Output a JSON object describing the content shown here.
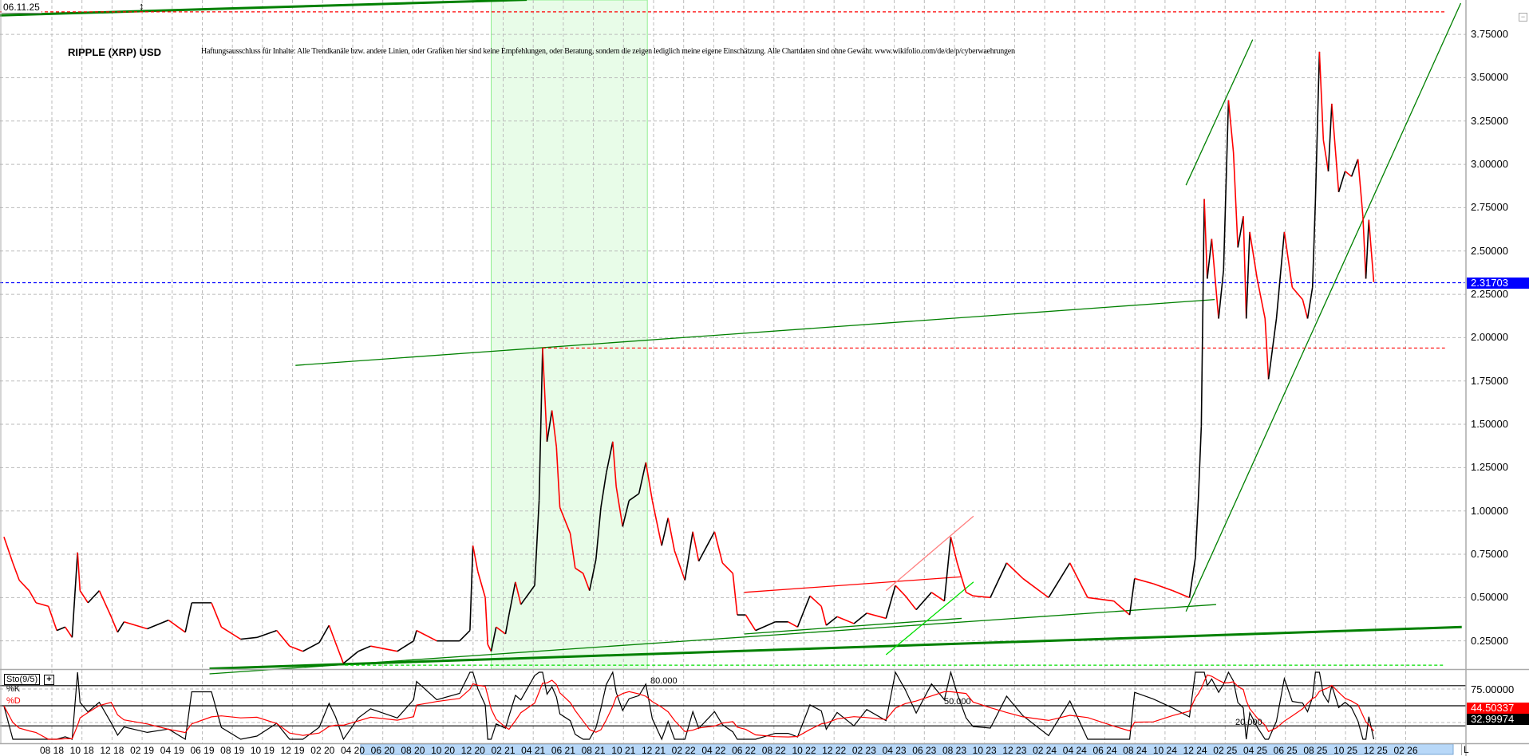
{
  "header": {
    "date": "06.11.25",
    "title": "RIPPLE (XRP) USD",
    "disclaimer": "Haftungsausschluss für Inhalte: Alle Trendkanäle bzw. andere Linien, oder Grafiken hier sind keine Empfehlungen, oder Beratung, sondern die zeigen lediglich meine eigene Einschätzung. Alle Chartdaten sind ohne Gewähr. www.wikifolio.com/de/de/p/cyberwaehrungen",
    "icons": {
      "drag": "up-down-arrow-icon",
      "collapse": "collapse-box-icon"
    }
  },
  "chart_data": {
    "type": "line",
    "style": "candlestick-like, up black / down red",
    "ylim": [
      0,
      3.95
    ],
    "y_ticks": [
      "0.25000",
      "0.50000",
      "0.75000",
      "1.00000",
      "1.25000",
      "1.50000",
      "1.75000",
      "2.00000",
      "2.25000",
      "2.50000",
      "2.75000",
      "3.00000",
      "3.25000",
      "3.50000",
      "3.75000"
    ],
    "x_ticks": [
      "08 18",
      "10 18",
      "12 18",
      "02 19",
      "04 19",
      "06 19",
      "08 19",
      "10 19",
      "12 19",
      "02 20",
      "04 20",
      "06 20",
      "08 20",
      "10 20",
      "12 20",
      "02 21",
      "04 21",
      "06 21",
      "08 21",
      "10 21",
      "12 21",
      "02 22",
      "04 22",
      "06 22",
      "08 22",
      "10 22",
      "12 22",
      "02 23",
      "04 23",
      "06 23",
      "08 23",
      "10 23",
      "12 23",
      "02 24",
      "04 24",
      "06 24",
      "08 24",
      "10 24",
      "12 24",
      "02 25",
      "04 25",
      "06 25",
      "08 25",
      "10 25",
      "12 25",
      "02 26"
    ],
    "grid": true,
    "current_price": "2.31703",
    "colors": {
      "up": "#000000",
      "down": "#ff0000",
      "current": "#0000ff",
      "trend": "#008000",
      "shade": "#e8fce8"
    },
    "points": [
      [
        "2018-04-26",
        0.85
      ],
      [
        "2018-05-14",
        0.7
      ],
      [
        "2018-05-27",
        0.6
      ],
      [
        "2018-06-16",
        0.54
      ],
      [
        "2018-06-30",
        0.47
      ],
      [
        "2018-07-25",
        0.45
      ],
      [
        "2018-08-11",
        0.31
      ],
      [
        "2018-08-28",
        0.33
      ],
      [
        "2018-09-11",
        0.27
      ],
      [
        "2018-09-22",
        0.76
      ],
      [
        "2018-09-27",
        0.54
      ],
      [
        "2018-10-13",
        0.47
      ],
      [
        "2018-11-05",
        0.54
      ],
      [
        "2018-11-29",
        0.39
      ],
      [
        "2018-12-12",
        0.3
      ],
      [
        "2018-12-25",
        0.36
      ],
      [
        "2019-02-10",
        0.32
      ],
      [
        "2019-03-25",
        0.37
      ],
      [
        "2019-04-28",
        0.3
      ],
      [
        "2019-05-11",
        0.47
      ],
      [
        "2019-06-20",
        0.47
      ],
      [
        "2019-07-10",
        0.33
      ],
      [
        "2019-08-18",
        0.26
      ],
      [
        "2019-09-20",
        0.27
      ],
      [
        "2019-10-30",
        0.31
      ],
      [
        "2019-11-25",
        0.22
      ],
      [
        "2019-12-22",
        0.19
      ],
      [
        "2020-01-24",
        0.24
      ],
      [
        "2020-02-13",
        0.34
      ],
      [
        "2020-02-26",
        0.24
      ],
      [
        "2020-03-13",
        0.12
      ],
      [
        "2020-04-12",
        0.19
      ],
      [
        "2020-05-07",
        0.22
      ],
      [
        "2020-06-30",
        0.19
      ],
      [
        "2020-08-02",
        0.25
      ],
      [
        "2020-08-08",
        0.31
      ],
      [
        "2020-09-18",
        0.25
      ],
      [
        "2020-11-03",
        0.25
      ],
      [
        "2020-11-24",
        0.31
      ],
      [
        "2020-11-30",
        0.8
      ],
      [
        "2020-12-10",
        0.65
      ],
      [
        "2020-12-25",
        0.5
      ],
      [
        "2020-12-30",
        0.23
      ],
      [
        "2021-01-06",
        0.19
      ],
      [
        "2021-01-16",
        0.33
      ],
      [
        "2021-02-04",
        0.29
      ],
      [
        "2021-02-11",
        0.4
      ],
      [
        "2021-02-24",
        0.59
      ],
      [
        "2021-03-07",
        0.46
      ],
      [
        "2021-04-04",
        0.57
      ],
      [
        "2021-04-13",
        1.06
      ],
      [
        "2021-04-20",
        1.94
      ],
      [
        "2021-04-29",
        1.4
      ],
      [
        "2021-05-09",
        1.58
      ],
      [
        "2021-05-18",
        1.37
      ],
      [
        "2021-05-25",
        1.02
      ],
      [
        "2021-06-15",
        0.87
      ],
      [
        "2021-06-25",
        0.67
      ],
      [
        "2021-07-11",
        0.64
      ],
      [
        "2021-07-24",
        0.54
      ],
      [
        "2021-08-06",
        0.72
      ],
      [
        "2021-08-16",
        1.02
      ],
      [
        "2021-08-27",
        1.22
      ],
      [
        "2021-09-09",
        1.4
      ],
      [
        "2021-09-16",
        1.14
      ],
      [
        "2021-09-29",
        0.91
      ],
      [
        "2021-10-12",
        1.06
      ],
      [
        "2021-11-01",
        1.1
      ],
      [
        "2021-11-15",
        1.28
      ],
      [
        "2021-11-28",
        1.06
      ],
      [
        "2021-12-17",
        0.8
      ],
      [
        "2021-12-30",
        0.96
      ],
      [
        "2022-01-12",
        0.77
      ],
      [
        "2022-02-02",
        0.6
      ],
      [
        "2022-02-18",
        0.88
      ],
      [
        "2022-03-02",
        0.71
      ],
      [
        "2022-04-03",
        0.88
      ],
      [
        "2022-04-19",
        0.7
      ],
      [
        "2022-05-10",
        0.64
      ],
      [
        "2022-05-19",
        0.4
      ],
      [
        "2022-06-05",
        0.4
      ],
      [
        "2022-06-25",
        0.31
      ],
      [
        "2022-08-04",
        0.36
      ],
      [
        "2022-08-30",
        0.36
      ],
      [
        "2022-09-18",
        0.33
      ],
      [
        "2022-10-13",
        0.51
      ],
      [
        "2022-11-05",
        0.45
      ],
      [
        "2022-11-15",
        0.34
      ],
      [
        "2022-12-07",
        0.39
      ],
      [
        "2023-01-10",
        0.35
      ],
      [
        "2023-02-05",
        0.41
      ],
      [
        "2023-03-16",
        0.38
      ],
      [
        "2023-04-04",
        0.57
      ],
      [
        "2023-04-24",
        0.51
      ],
      [
        "2023-05-16",
        0.43
      ],
      [
        "2023-06-16",
        0.53
      ],
      [
        "2023-07-12",
        0.48
      ],
      [
        "2023-07-25",
        0.85
      ],
      [
        "2023-08-07",
        0.7
      ],
      [
        "2023-08-25",
        0.53
      ],
      [
        "2023-09-08",
        0.51
      ],
      [
        "2023-10-13",
        0.5
      ],
      [
        "2023-11-15",
        0.7
      ],
      [
        "2023-12-18",
        0.61
      ],
      [
        "2024-02-08",
        0.5
      ],
      [
        "2024-03-22",
        0.7
      ],
      [
        "2024-04-27",
        0.5
      ],
      [
        "2024-06-19",
        0.48
      ],
      [
        "2024-07-21",
        0.4
      ],
      [
        "2024-07-31",
        0.61
      ],
      [
        "2024-09-07",
        0.58
      ],
      [
        "2024-10-16",
        0.54
      ],
      [
        "2024-11-19",
        0.5
      ],
      [
        "2024-12-01",
        0.73
      ],
      [
        "2024-12-07",
        1.07
      ],
      [
        "2024-12-13",
        1.49
      ],
      [
        "2024-12-19",
        2.8
      ],
      [
        "2024-12-25",
        2.34
      ],
      [
        "2025-01-03",
        2.57
      ],
      [
        "2025-01-17",
        2.11
      ],
      [
        "2025-01-27",
        2.39
      ],
      [
        "2025-02-06",
        3.37
      ],
      [
        "2025-02-16",
        3.07
      ],
      [
        "2025-02-25",
        2.52
      ],
      [
        "2025-03-08",
        2.7
      ],
      [
        "2025-03-14",
        2.11
      ],
      [
        "2025-03-21",
        2.61
      ],
      [
        "2025-04-05",
        2.34
      ],
      [
        "2025-04-21",
        2.11
      ],
      [
        "2025-04-28",
        1.76
      ],
      [
        "2025-05-14",
        2.11
      ],
      [
        "2025-05-30",
        2.61
      ],
      [
        "2025-06-15",
        2.29
      ],
      [
        "2025-07-06",
        2.22
      ],
      [
        "2025-07-16",
        2.11
      ],
      [
        "2025-07-26",
        2.29
      ],
      [
        "2025-08-01",
        2.8
      ],
      [
        "2025-08-09",
        3.65
      ],
      [
        "2025-08-17",
        3.14
      ],
      [
        "2025-08-27",
        2.96
      ],
      [
        "2025-09-03",
        3.35
      ],
      [
        "2025-09-17",
        2.84
      ],
      [
        "2025-09-30",
        2.96
      ],
      [
        "2025-10-13",
        2.93
      ],
      [
        "2025-10-26",
        3.03
      ],
      [
        "2025-11-05",
        2.7
      ],
      [
        "2025-11-11",
        2.34
      ],
      [
        "2025-11-17",
        2.68
      ],
      [
        "2025-11-27",
        2.32
      ]
    ],
    "shaded_range": [
      "2021-01-06",
      "2021-11-18"
    ],
    "annotations": [
      {
        "kind": "trendline",
        "from": [
          "2018-04-17",
          3.86
        ],
        "to": [
          "2021-03-19",
          3.95
        ],
        "color": "#008000",
        "width": "thick"
      },
      {
        "kind": "trendline",
        "from": [
          "2019-06-16",
          0.09
        ],
        "to": [
          "2026-05-24",
          0.33
        ],
        "color": "#008000",
        "width": "thick"
      },
      {
        "kind": "trendline",
        "from": [
          "2019-06-16",
          0.06
        ],
        "to": [
          "2025-01-12",
          0.46
        ],
        "color": "#008000",
        "width": "thin"
      },
      {
        "kind": "trendline",
        "from": [
          "2022-06-02",
          0.29
        ],
        "to": [
          "2023-08-16",
          0.38
        ],
        "color": "#008000",
        "width": "thin"
      },
      {
        "kind": "trendline",
        "from": [
          "2019-12-07",
          1.84
        ],
        "to": [
          "2025-01-09",
          2.22
        ],
        "color": "#008000",
        "width": "thin"
      },
      {
        "kind": "trendline",
        "from": [
          "2024-11-12",
          2.88
        ],
        "to": [
          "2025-03-27",
          3.72
        ],
        "color": "#008000",
        "width": "thin"
      },
      {
        "kind": "trendline",
        "from": [
          "2024-11-12",
          0.42
        ],
        "to": [
          "2026-05-22",
          3.93
        ],
        "color": "#008000",
        "width": "thin"
      },
      {
        "kind": "trendline",
        "from": [
          "2022-06-02",
          0.53
        ],
        "to": [
          "2023-08-16",
          0.62
        ],
        "color": "#ff0000",
        "width": "thin"
      },
      {
        "kind": "trendline",
        "from": [
          "2023-03-16",
          0.54
        ],
        "to": [
          "2023-09-09",
          0.97
        ],
        "color": "#ff8080",
        "width": "thin"
      },
      {
        "kind": "trendline",
        "from": [
          "2023-03-16",
          0.17
        ],
        "to": [
          "2023-09-09",
          0.59
        ],
        "color": "#00e000",
        "width": "thin"
      },
      {
        "kind": "hline",
        "price": 3.88,
        "from": "2018-04-17",
        "to": "2026-04-20",
        "color": "#ff0000",
        "style": "dashed"
      },
      {
        "kind": "hline",
        "price": 1.94,
        "from": "2021-04-20",
        "to": "2026-04-20",
        "color": "#ff0000",
        "style": "dashed"
      },
      {
        "kind": "hline",
        "price": 0.11,
        "from": "2020-03-16",
        "to": "2026-04-20",
        "color": "#00dd00",
        "style": "dashed"
      },
      {
        "kind": "hline",
        "price": 2.31703,
        "from": "2018-04-17",
        "to": "2026-05-30",
        "color": "#0000ff",
        "style": "dashed"
      }
    ]
  },
  "stochastic": {
    "label": "Sto(9/5)",
    "plus": "+",
    "k_label": "%K",
    "d_label": "%D",
    "periods": [
      9,
      5
    ],
    "levels": [
      {
        "value": 80,
        "label": "80.000"
      },
      {
        "value": 50,
        "label": "50.000"
      },
      {
        "value": 20,
        "label": "20.000"
      }
    ],
    "axis_tick": "75.00000",
    "current_d": "44.50337",
    "current_k": "32.99974",
    "colors": {
      "k": "#000000",
      "d": "#ff0000"
    }
  },
  "footer": {
    "l_button": "L"
  }
}
